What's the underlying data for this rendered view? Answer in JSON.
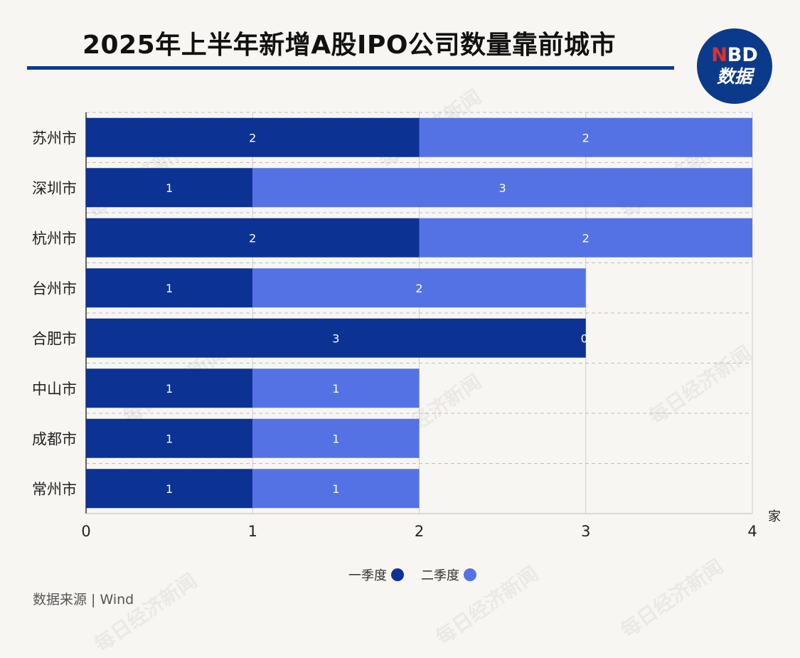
{
  "header": {
    "title": "2025年上半年新增A股IPO公司数量靠前城市"
  },
  "logo": {
    "top_accent": "N",
    "top_rest": "BD",
    "bottom": "数据"
  },
  "watermark_text": "每日经济新闻",
  "unit_label": "家",
  "source": "数据来源 | Wind",
  "colors": {
    "q1": "#0c3293",
    "q2": "#5572e4",
    "title_rule": "#0d3a8c",
    "grid": "#cccccc"
  },
  "chart_data": {
    "type": "bar",
    "orientation": "horizontal",
    "stacked": true,
    "categories": [
      "苏州市",
      "深圳市",
      "杭州市",
      "台州市",
      "合肥市",
      "中山市",
      "成都市",
      "常州市"
    ],
    "series": [
      {
        "name": "一季度",
        "values": [
          2,
          1,
          2,
          1,
          3,
          1,
          1,
          1
        ]
      },
      {
        "name": "二季度",
        "values": [
          2,
          3,
          2,
          2,
          0,
          1,
          1,
          1
        ]
      }
    ],
    "xlim": [
      0,
      4
    ],
    "xticks": [
      0,
      1,
      2,
      3,
      4
    ],
    "xlabel": "家",
    "grid": true,
    "legend_position": "bottom"
  }
}
